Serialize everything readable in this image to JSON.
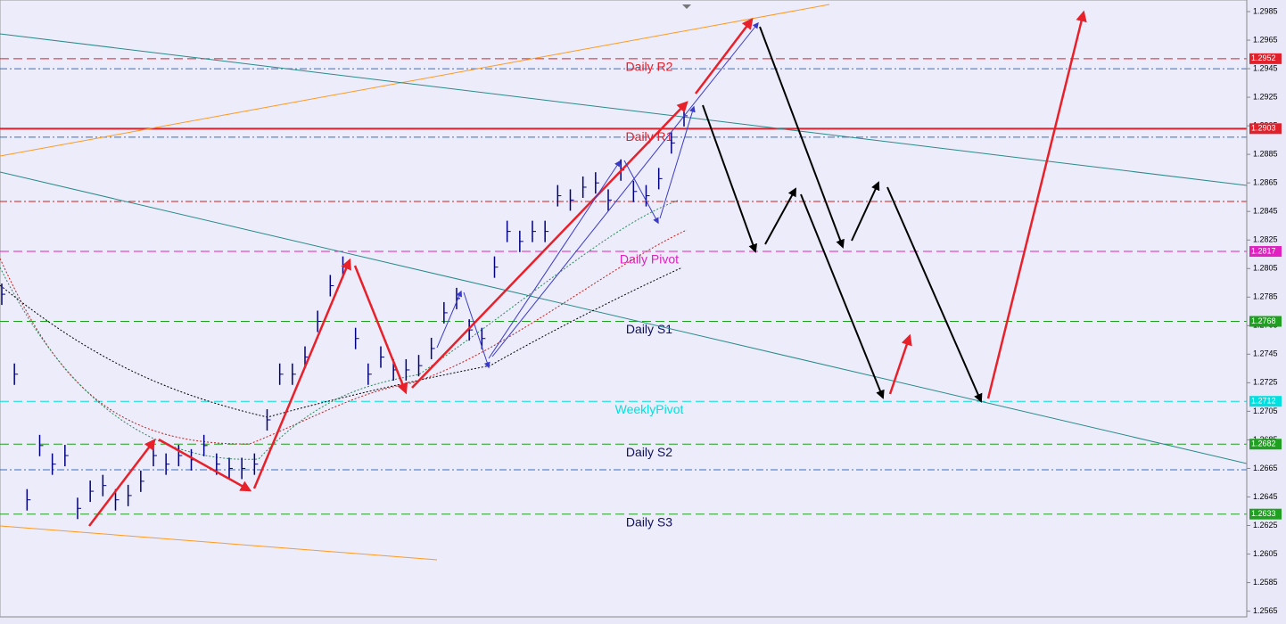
{
  "chart_data": {
    "type": "price-bars",
    "color": "#000080",
    "values": [
      1.2787,
      1.2731,
      1.2643,
      1.2681,
      1.2668,
      1.2674,
      1.2637,
      1.2649,
      1.2653,
      1.2643,
      1.2646,
      1.2656,
      1.2674,
      1.2668,
      1.2674,
      1.2671,
      1.2681,
      1.2668,
      1.2665,
      1.2665,
      1.2668,
      1.2699,
      1.2731,
      1.2731,
      1.2743,
      1.2768,
      1.2793,
      1.2806,
      1.2756,
      1.2731,
      1.2743,
      1.2734,
      1.2734,
      1.2737,
      1.2749,
      1.2774,
      1.2784,
      1.2762,
      1.2756,
      1.2806,
      1.2831,
      1.2824,
      1.2831,
      1.2831,
      1.2856,
      1.2853,
      1.2862,
      1.2865,
      1.2853,
      1.2874,
      1.2859,
      1.2856,
      1.2868,
      1.2893,
      1.2912
    ],
    "ylim": [
      1.2561,
      1.299
    ],
    "yticks": [
      1.2985,
      1.2965,
      1.2945,
      1.2925,
      1.2905,
      1.2885,
      1.2865,
      1.2845,
      1.2825,
      1.2805,
      1.2785,
      1.2765,
      1.2745,
      1.2725,
      1.2705,
      1.2685,
      1.2665,
      1.2645,
      1.2625,
      1.2605,
      1.2585,
      1.2565
    ],
    "levels": [
      {
        "name": "Daily R2",
        "value": 1.2952,
        "color": "#e0202a",
        "style": "dashed"
      },
      {
        "name": "Daily R1",
        "value": 1.2903,
        "color": "#e0202a",
        "style": "solid"
      },
      {
        "name": "Daily Pivot",
        "value": 1.2817,
        "color": "#e020c0",
        "style": "dashed"
      },
      {
        "name": "Daily S1",
        "value": 1.2768,
        "color": "#20a020",
        "style": "dashed"
      },
      {
        "name": "WeeklyPivot",
        "value": 1.2712,
        "color": "#00e0e0",
        "style": "dashed"
      },
      {
        "name": "Daily S2",
        "value": 1.2682,
        "color": "#20a020",
        "style": "dashed"
      },
      {
        "name": "Daily S3",
        "value": 1.2633,
        "color": "#20a020",
        "style": "dashed"
      }
    ],
    "guides": [
      {
        "value": 1.2945,
        "color": "#3a6fc0"
      },
      {
        "value": 1.2897,
        "color": "#3a6fc0"
      },
      {
        "value": 1.2852,
        "color": "#d02020"
      },
      {
        "value": 1.2664,
        "color": "#3a6fc0"
      }
    ]
  }
}
